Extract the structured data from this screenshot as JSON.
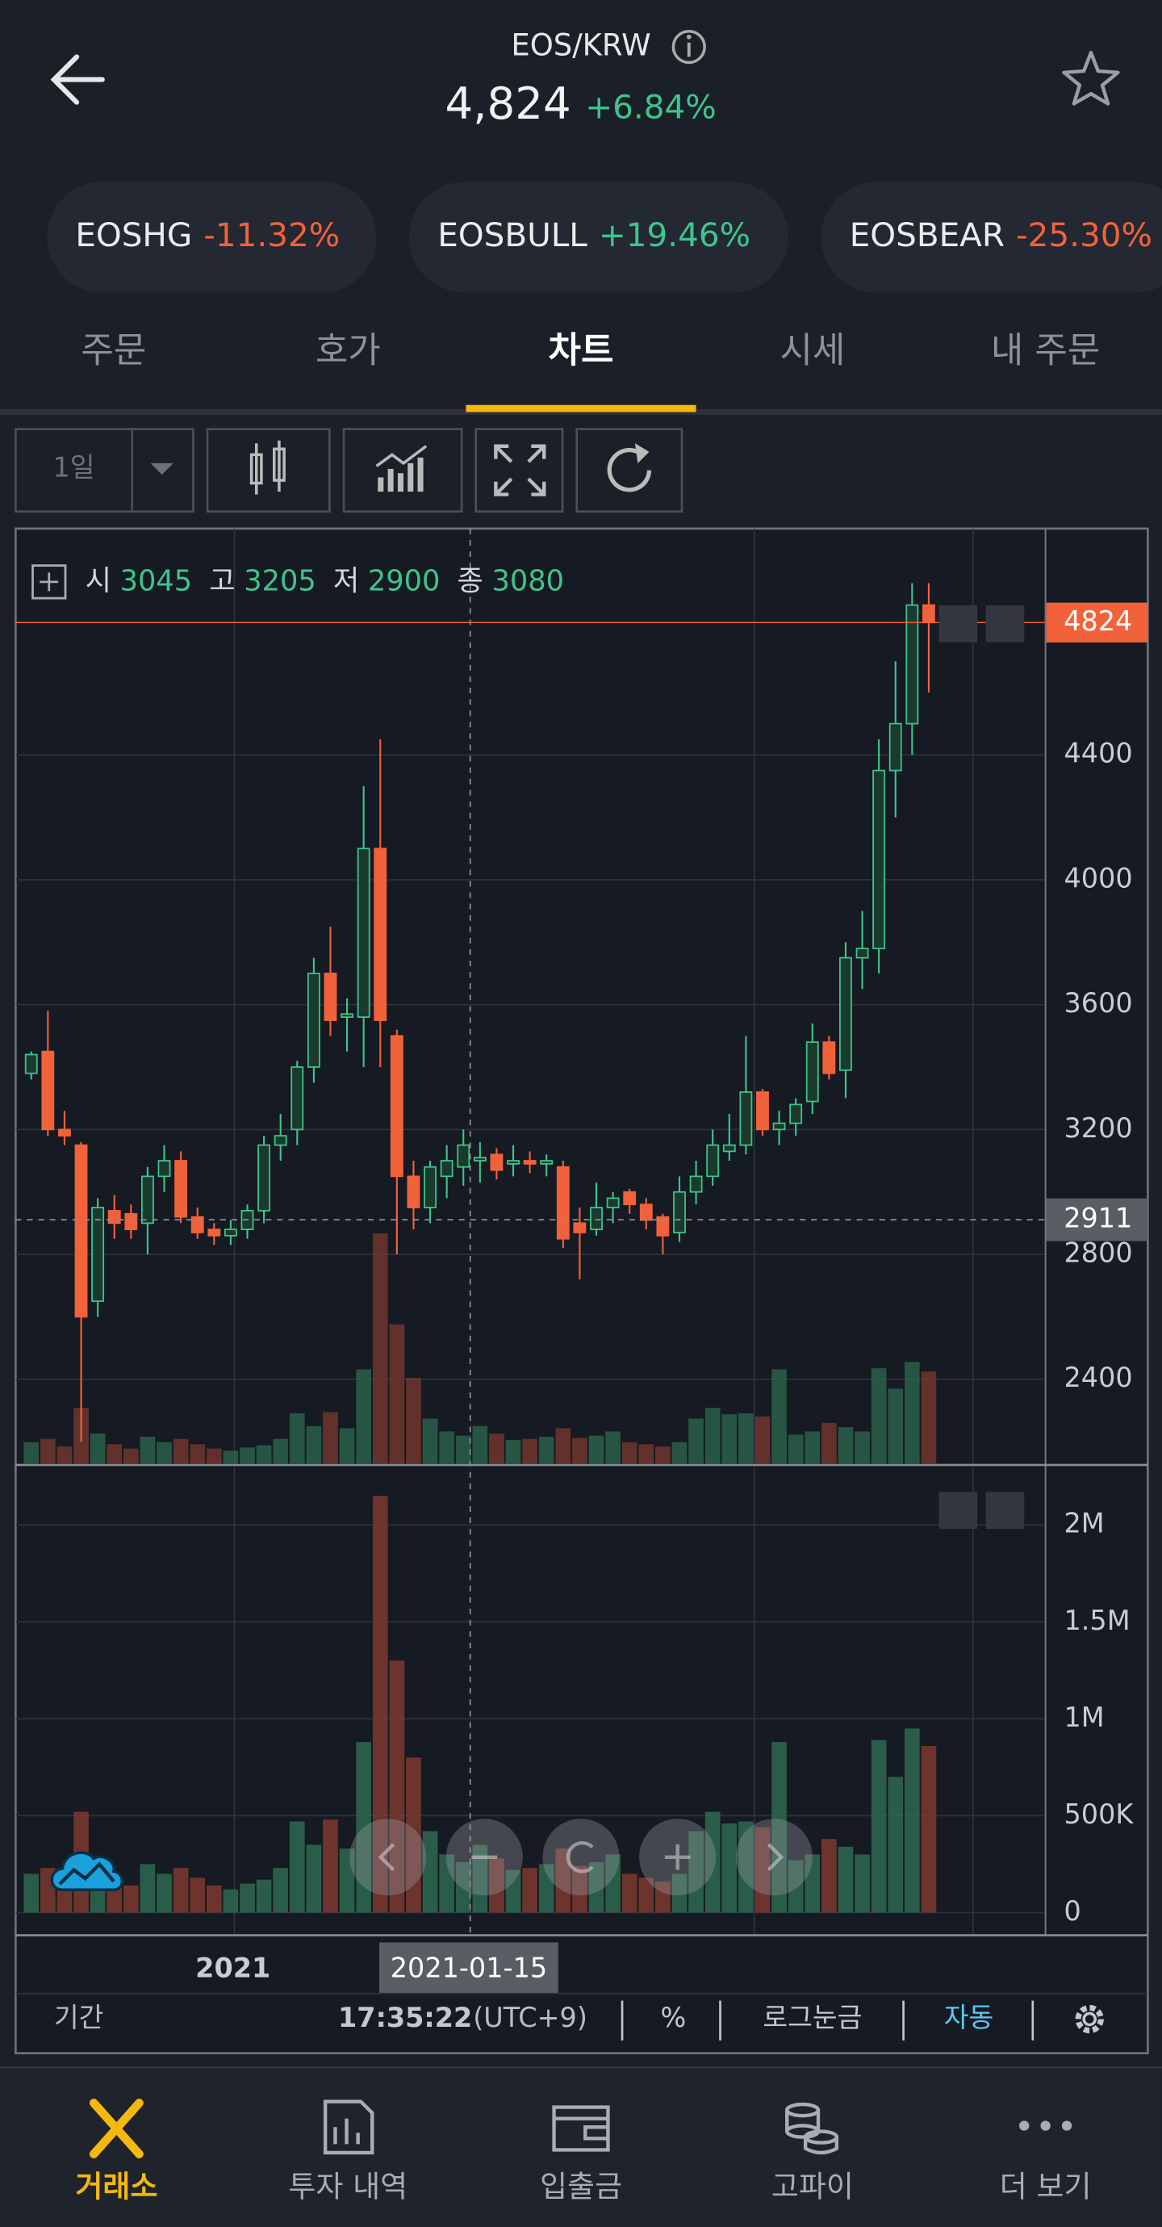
{
  "header": {
    "pair": "EOS/KRW",
    "price": "4,824",
    "change": "+6.84%"
  },
  "related": [
    {
      "name": "EOSHG",
      "change": "-11.32%"
    },
    {
      "name": "EOSBULL",
      "change": "+19.46%"
    },
    {
      "name": "EOSBEAR",
      "change": "-25.30%"
    }
  ],
  "tabs": [
    "주문",
    "호가",
    "차트",
    "시세",
    "내 주문"
  ],
  "active_tab": 2,
  "toolbar": {
    "interval": "1일"
  },
  "chart": {
    "type": "candlestick",
    "ohlc_legend": {
      "labels": [
        "시",
        "고",
        "저",
        "종"
      ],
      "values": [
        3045,
        3205,
        2900,
        3080
      ]
    },
    "up_color": "#3ec58c",
    "down_color": "#f2623a",
    "candles": [
      [
        3380,
        3450,
        3360,
        3440
      ],
      [
        3450,
        3580,
        3180,
        3200
      ],
      [
        3200,
        3260,
        3150,
        3180
      ],
      [
        3150,
        3160,
        2200,
        2600
      ],
      [
        2650,
        2980,
        2600,
        2950
      ],
      [
        2940,
        2990,
        2850,
        2900
      ],
      [
        2930,
        2960,
        2850,
        2880
      ],
      [
        2900,
        3080,
        2800,
        3050
      ],
      [
        3050,
        3150,
        3000,
        3100
      ],
      [
        3100,
        3130,
        2900,
        2920
      ],
      [
        2920,
        2950,
        2850,
        2870
      ],
      [
        2880,
        2900,
        2830,
        2860
      ],
      [
        2860,
        2910,
        2830,
        2880
      ],
      [
        2880,
        2960,
        2850,
        2940
      ],
      [
        2940,
        3180,
        2900,
        3150
      ],
      [
        3150,
        3250,
        3100,
        3180
      ],
      [
        3200,
        3420,
        3150,
        3400
      ],
      [
        3400,
        3750,
        3350,
        3700
      ],
      [
        3700,
        3850,
        3500,
        3550
      ],
      [
        3560,
        3620,
        3450,
        3570
      ],
      [
        3560,
        4300,
        3400,
        4100
      ],
      [
        4100,
        4450,
        3400,
        3550
      ],
      [
        3500,
        3520,
        2800,
        3050
      ],
      [
        3050,
        3100,
        2880,
        2950
      ],
      [
        2950,
        3100,
        2900,
        3080
      ],
      [
        3050,
        3150,
        2980,
        3100
      ],
      [
        3080,
        3200,
        3020,
        3150
      ],
      [
        3100,
        3160,
        3030,
        3110
      ],
      [
        3120,
        3140,
        3040,
        3070
      ],
      [
        3090,
        3150,
        3050,
        3100
      ],
      [
        3100,
        3130,
        3060,
        3090
      ],
      [
        3090,
        3120,
        3050,
        3100
      ],
      [
        3080,
        3100,
        2820,
        2850
      ],
      [
        2900,
        2950,
        2720,
        2870
      ],
      [
        2880,
        3030,
        2860,
        2950
      ],
      [
        2950,
        3000,
        2900,
        2980
      ],
      [
        3000,
        3010,
        2930,
        2960
      ],
      [
        2960,
        2980,
        2880,
        2910
      ],
      [
        2920,
        2930,
        2800,
        2860
      ],
      [
        2870,
        3050,
        2840,
        3000
      ],
      [
        3000,
        3100,
        2960,
        3050
      ],
      [
        3050,
        3200,
        3020,
        3150
      ],
      [
        3130,
        3250,
        3100,
        3150
      ],
      [
        3150,
        3500,
        3120,
        3320
      ],
      [
        3320,
        3330,
        3180,
        3200
      ],
      [
        3200,
        3260,
        3150,
        3220
      ],
      [
        3220,
        3300,
        3180,
        3280
      ],
      [
        3290,
        3540,
        3250,
        3480
      ],
      [
        3480,
        3500,
        3360,
        3380
      ],
      [
        3390,
        3800,
        3300,
        3750
      ],
      [
        3750,
        3900,
        3650,
        3780
      ],
      [
        3780,
        4450,
        3700,
        4350
      ],
      [
        4350,
        4700,
        4200,
        4500
      ],
      [
        4500,
        4950,
        4400,
        4880
      ],
      [
        4880,
        4950,
        4600,
        4824
      ]
    ],
    "volume": [
      200000,
      230000,
      160000,
      520000,
      280000,
      180000,
      140000,
      250000,
      200000,
      230000,
      180000,
      140000,
      120000,
      150000,
      170000,
      230000,
      470000,
      350000,
      480000,
      330000,
      880000,
      2150000,
      1300000,
      800000,
      420000,
      300000,
      260000,
      350000,
      280000,
      220000,
      230000,
      250000,
      330000,
      240000,
      260000,
      300000,
      200000,
      180000,
      160000,
      200000,
      420000,
      520000,
      460000,
      470000,
      440000,
      880000,
      270000,
      300000,
      380000,
      340000,
      300000,
      890000,
      700000,
      950000,
      860000
    ],
    "ylim": [
      2130,
      5125
    ],
    "yticks": [
      2400,
      2800,
      3200,
      3600,
      4000,
      4400
    ],
    "last_price": 4824,
    "crosshair_price": 2911,
    "volume_ylim": [
      -117000,
      2280000
    ],
    "volume_ticks": [
      0,
      {
        "value": 500000,
        "label": "500K"
      },
      {
        "value": 1000000,
        "label": "1M"
      },
      {
        "value": 1500000,
        "label": "1.5M"
      },
      {
        "value": 2000000,
        "label": "2M"
      }
    ],
    "x_label": "2021",
    "crosshair_date": "2021-01-15"
  },
  "footer": {
    "period": "기간",
    "time": "17:35:22",
    "timezone": "(UTC+9)",
    "percent": "%",
    "log_scale": "로그눈금",
    "auto": "자동"
  },
  "nav": [
    "거래소",
    "투자 내역",
    "입출금",
    "고파이",
    "더 보기"
  ]
}
